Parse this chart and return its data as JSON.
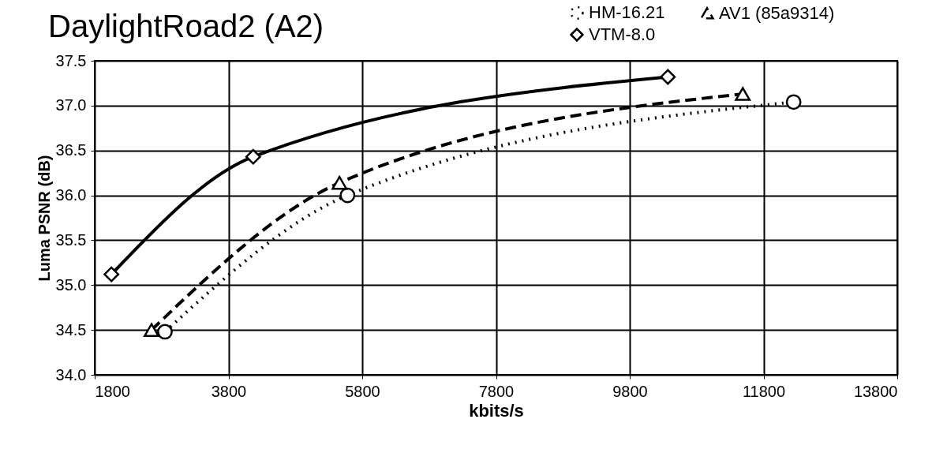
{
  "chart_data": {
    "type": "line",
    "title": "DaylightRoad2 (A2)",
    "xlabel": "kbits/s",
    "ylabel": "Luma PSNR (dB)",
    "xlim": [
      1800,
      13800
    ],
    "xticks": [
      1800,
      3800,
      5800,
      7800,
      9800,
      11800,
      13800
    ],
    "ylim": [
      34.0,
      37.5
    ],
    "yticks": [
      {
        "value": 34.0,
        "label": "34.0"
      },
      {
        "value": 34.5,
        "label": "34.5"
      },
      {
        "value": 35.0,
        "label": "35.0"
      },
      {
        "value": 35.5,
        "label": "35.5"
      },
      {
        "value": 36.0,
        "label": "36.0"
      },
      {
        "value": 36.5,
        "label": "36.5"
      },
      {
        "value": 37.0,
        "label": "37.0"
      },
      {
        "value": 37.5,
        "label": "37.5"
      }
    ],
    "grid": true,
    "legend": "top right",
    "series": [
      {
        "name": "HM-16.21",
        "color": "#000000",
        "marker": "circle",
        "line_style": "dotted",
        "x": [
          2850,
          5580,
          12250
        ],
        "values": [
          34.48,
          36.0,
          37.04
        ]
      },
      {
        "name": "VTM-8.0",
        "color": "#000000",
        "marker": "diamond",
        "line_style": "solid",
        "x": [
          2050,
          4170,
          10370
        ],
        "values": [
          35.12,
          36.43,
          37.32
        ]
      },
      {
        "name": "AV1 (85a9314)",
        "color": "#000000",
        "marker": "triangle",
        "line_style": "dashed",
        "x": [
          2650,
          5460,
          11490
        ],
        "values": [
          34.5,
          36.14,
          37.13
        ]
      }
    ]
  }
}
